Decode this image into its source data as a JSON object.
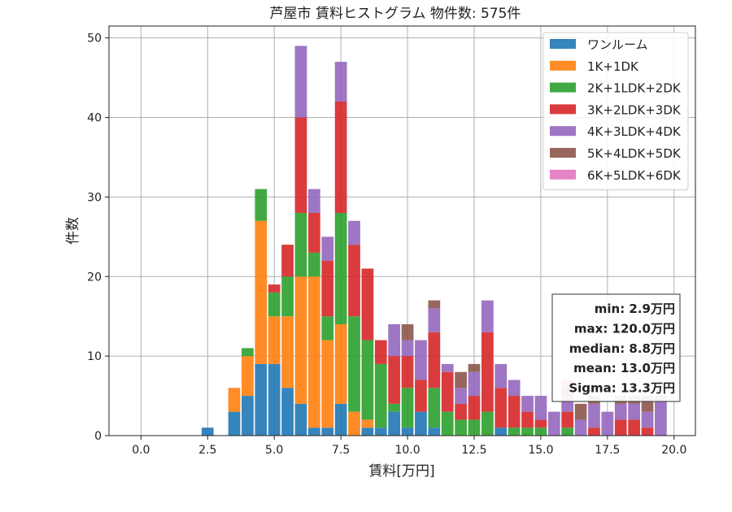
{
  "chart_data": {
    "type": "bar",
    "stacked": true,
    "title": "芦屋市 賃料ヒストグラム 物件数: 575件",
    "xlabel": "賃料[万円]",
    "ylabel": "件数",
    "xlim": [
      -1.2,
      20.8
    ],
    "ylim": [
      0,
      51.5
    ],
    "xticks": [
      0,
      2.5,
      5,
      7.5,
      10,
      12.5,
      15,
      17.5,
      20
    ],
    "xtick_labels": [
      "0.0",
      "2.5",
      "5.0",
      "7.5",
      "10.0",
      "12.5",
      "15.0",
      "17.5",
      "20.0"
    ],
    "yticks": [
      0,
      10,
      20,
      30,
      40,
      50
    ],
    "ytick_labels": [
      "0",
      "10",
      "20",
      "30",
      "40",
      "50"
    ],
    "grid": true,
    "legend_position": "top-right",
    "bin_width": 0.5,
    "bin_centers": [
      2.5,
      3.5,
      4.0,
      4.5,
      5.0,
      5.5,
      6.0,
      6.5,
      7.0,
      7.5,
      8.0,
      8.5,
      9.0,
      9.5,
      10.0,
      10.5,
      11.0,
      11.5,
      12.0,
      12.5,
      13.0,
      13.5,
      14.0,
      14.5,
      15.0,
      15.5,
      16.0,
      16.5,
      17.0,
      17.5,
      18.0,
      18.5,
      19.0,
      19.5
    ],
    "series": [
      {
        "name": "ワンルーム",
        "color": "#1f77b4",
        "values": [
          1,
          3,
          5,
          9,
          9,
          6,
          4,
          1,
          1,
          4,
          0,
          1,
          1,
          3,
          1,
          3,
          1,
          0,
          0,
          0,
          0,
          1,
          0,
          0,
          0,
          0,
          0,
          0,
          0,
          0,
          0,
          0,
          0,
          0
        ]
      },
      {
        "name": "1K+1DK",
        "color": "#ff7f0e",
        "values": [
          0,
          3,
          5,
          18,
          6,
          9,
          16,
          19,
          11,
          10,
          3,
          1,
          0,
          0,
          0,
          0,
          0,
          0,
          0,
          0,
          0,
          0,
          0,
          0,
          0,
          0,
          0,
          0,
          0,
          0,
          0,
          0,
          0,
          0
        ]
      },
      {
        "name": "2K+1LDK+2DK",
        "color": "#2ca02c",
        "values": [
          0,
          0,
          1,
          4,
          3,
          5,
          8,
          3,
          3,
          14,
          12,
          10,
          8,
          1,
          5,
          0,
          5,
          3,
          2,
          2,
          3,
          0,
          1,
          1,
          1,
          0,
          1,
          0,
          0,
          0,
          0,
          0,
          0,
          0
        ]
      },
      {
        "name": "3K+2LDK+3DK",
        "color": "#d62728",
        "values": [
          0,
          0,
          0,
          0,
          1,
          4,
          12,
          5,
          7,
          14,
          9,
          9,
          3,
          6,
          4,
          4,
          7,
          5,
          2,
          3,
          10,
          5,
          4,
          2,
          1,
          0,
          2,
          0,
          1,
          0,
          2,
          2,
          1,
          0
        ]
      },
      {
        "name": "4K+3LDK+4DK",
        "color": "#9467bd",
        "values": [
          0,
          0,
          0,
          0,
          0,
          0,
          9,
          3,
          3,
          5,
          3,
          0,
          0,
          4,
          2,
          5,
          3,
          1,
          2,
          3,
          4,
          3,
          2,
          2,
          3,
          3,
          2,
          2,
          3,
          3,
          2,
          2,
          2,
          5
        ]
      },
      {
        "name": "5K+4LDK+5DK",
        "color": "#8c564b",
        "values": [
          0,
          0,
          0,
          0,
          0,
          0,
          0,
          0,
          0,
          0,
          0,
          0,
          0,
          0,
          2,
          0,
          1,
          0,
          2,
          1,
          0,
          0,
          0,
          0,
          0,
          0,
          1,
          2,
          1,
          0,
          1,
          1,
          2,
          0
        ]
      },
      {
        "name": "6K+5LDK+6DK",
        "color": "#e377c2",
        "values": [
          0,
          0,
          0,
          0,
          0,
          0,
          0,
          0,
          0,
          0,
          0,
          0,
          0,
          0,
          0,
          0,
          0,
          0,
          0,
          0,
          0,
          0,
          0,
          0,
          0,
          0,
          1,
          0,
          0,
          0,
          0,
          0,
          0,
          0
        ]
      }
    ],
    "stats_box": {
      "lines": [
        "min: 2.9万円",
        "max: 120.0万円",
        "median: 8.8万円",
        "mean: 13.0万円",
        "Sigma: 13.3万円"
      ]
    }
  }
}
